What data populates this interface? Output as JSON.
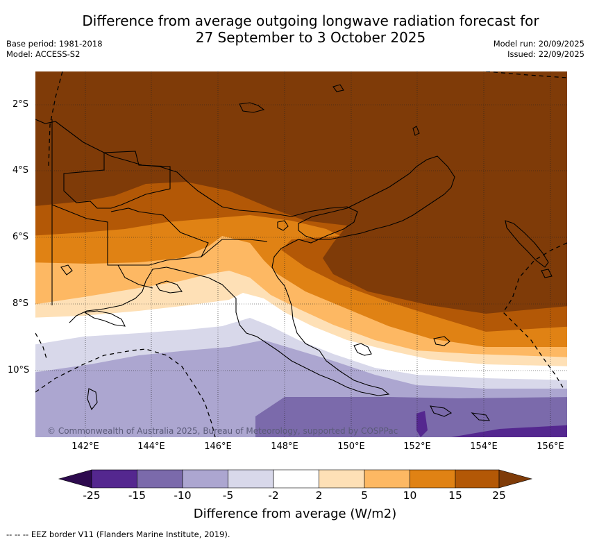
{
  "title_line1": "Difference from average outgoing longwave radiation forecast for",
  "title_line2": "27 September to 3 October 2025",
  "base_period": "Base period: 1981-2018",
  "model": "Model: ACCESS-S2",
  "model_run": "Model run: 20/09/2025",
  "issued": "Issued: 22/09/2025",
  "copyright": "© Commonwealth of Australia 2025, Bureau of Meteorology, supported by COSPPac",
  "map": {
    "latitudes": [
      "2°S",
      "4°S",
      "6°S",
      "8°S",
      "10°S"
    ],
    "longitudes": [
      "142°E",
      "144°E",
      "146°E",
      "148°E",
      "150°E",
      "152°E",
      "154°E",
      "156°E"
    ]
  },
  "colorbar": {
    "title": "Difference from average (W/m2)",
    "ticks": [
      "-25",
      "-15",
      "-10",
      "-5",
      "-2",
      "2",
      "5",
      "10",
      "15",
      "25"
    ],
    "colors": {
      "below_min": "#2d0a4e",
      "c1": "#54278f",
      "c2": "#7b6aab",
      "c3": "#aca6d0",
      "c4": "#d8d8ea",
      "c5": "#ffffff",
      "c6": "#fee0b6",
      "c7": "#fdb863",
      "c8": "#e08214",
      "c9": "#b35806",
      "above_max": "#7f3b08"
    }
  },
  "footer": "--  --  -- EEZ border V11 (Flanders Marine Institute, 2019)."
}
